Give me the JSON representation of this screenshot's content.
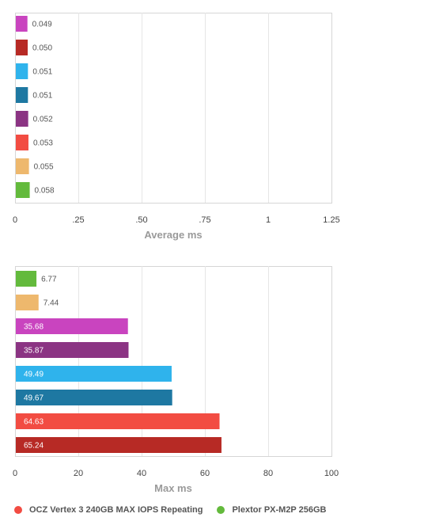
{
  "chart_data": [
    {
      "type": "bar",
      "orientation": "horizontal",
      "xlabel": "Average ms",
      "xlim": [
        0,
        1.25
      ],
      "xticks": [
        0,
        0.25,
        0.5,
        0.75,
        1,
        1.25
      ],
      "xtick_labels": [
        "0",
        ".25",
        ".50",
        ".75",
        "1",
        "1.25"
      ],
      "grid": true,
      "bars": [
        {
          "value": 0.049,
          "label": "0.049",
          "color": "#c944bf"
        },
        {
          "value": 0.05,
          "label": "0.050",
          "color": "#b72a25"
        },
        {
          "value": 0.051,
          "label": "0.051",
          "color": "#2fb3ec"
        },
        {
          "value": 0.051,
          "label": "0.051",
          "color": "#1e78a2"
        },
        {
          "value": 0.052,
          "label": "0.052",
          "color": "#8b3483"
        },
        {
          "value": 0.053,
          "label": "0.053",
          "color": "#f24c42"
        },
        {
          "value": 0.055,
          "label": "0.055",
          "color": "#eeb86d"
        },
        {
          "value": 0.058,
          "label": "0.058",
          "color": "#63ba3c"
        }
      ]
    },
    {
      "type": "bar",
      "orientation": "horizontal",
      "xlabel": "Max ms",
      "xlim": [
        0,
        100
      ],
      "xticks": [
        0,
        20,
        40,
        60,
        80,
        100
      ],
      "xtick_labels": [
        "0",
        "20",
        "40",
        "60",
        "80",
        "100"
      ],
      "grid": true,
      "bars": [
        {
          "value": 6.77,
          "label": "6.77",
          "color": "#63ba3c"
        },
        {
          "value": 7.44,
          "label": "7.44",
          "color": "#eeb86d"
        },
        {
          "value": 35.68,
          "label": "35.68",
          "color": "#c944bf"
        },
        {
          "value": 35.87,
          "label": "35.87",
          "color": "#8b3483"
        },
        {
          "value": 49.49,
          "label": "49.49",
          "color": "#2fb3ec"
        },
        {
          "value": 49.67,
          "label": "49.67",
          "color": "#1e78a2"
        },
        {
          "value": 64.63,
          "label": "64.63",
          "color": "#f24c42"
        },
        {
          "value": 65.24,
          "label": "65.24",
          "color": "#b72a25"
        }
      ]
    }
  ],
  "legend": [
    {
      "label": "OCZ Vertex 3 240GB MAX IOPS Repeating",
      "color": "#f24c42"
    },
    {
      "label": "Plextor PX-M2P 256GB",
      "color": "#63ba3c"
    }
  ]
}
